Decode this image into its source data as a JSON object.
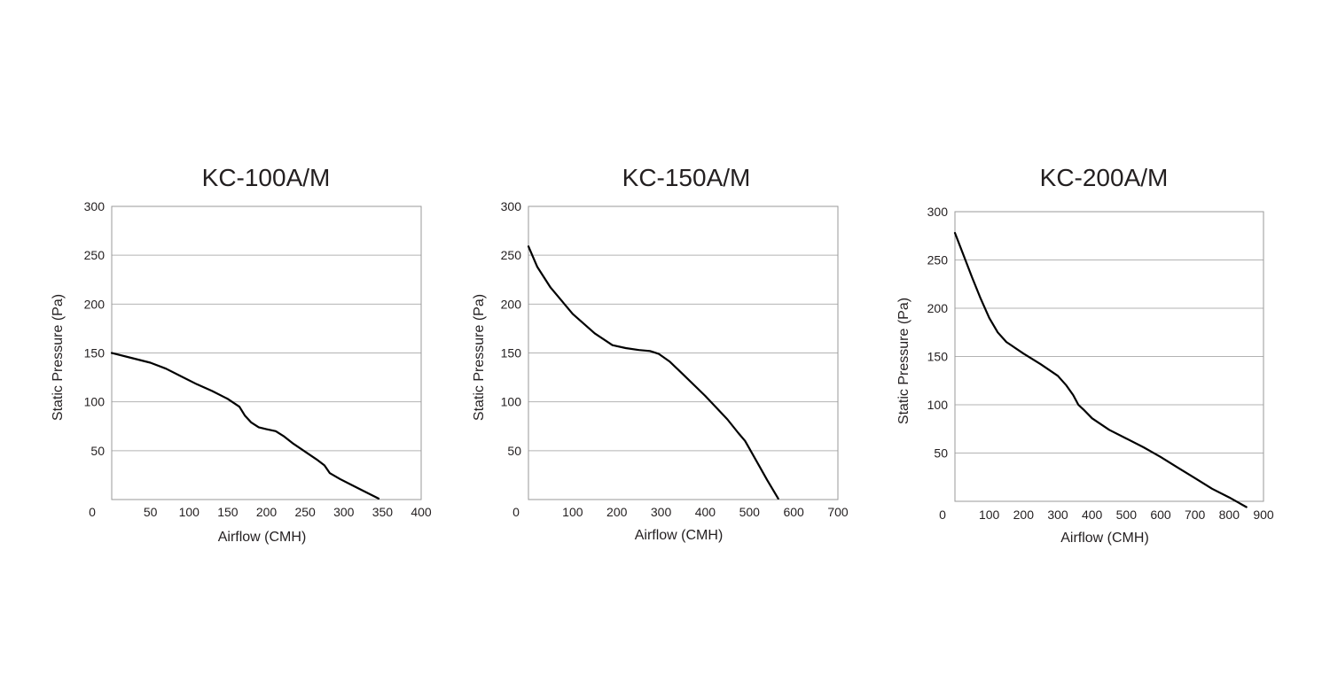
{
  "chart_data": [
    {
      "type": "line",
      "title": "KC-100A/M",
      "xlabel": "Airflow (CMH)",
      "ylabel": "Static Pressure (Pa)",
      "xlim": [
        0,
        400
      ],
      "ylim": [
        0,
        300
      ],
      "x_ticks": [
        "50",
        "100",
        "150",
        "200",
        "250",
        "300",
        "350",
        "400"
      ],
      "x_tick_values": [
        50,
        100,
        150,
        200,
        250,
        300,
        350,
        400
      ],
      "y_ticks": [
        "50",
        "100",
        "150",
        "200",
        "250",
        "300"
      ],
      "y_tick_values": [
        50,
        100,
        150,
        200,
        250,
        300
      ],
      "origin_label": "0",
      "grid": "horizontal",
      "series": [
        {
          "values": [
            [
              0,
              150
            ],
            [
              25,
              145
            ],
            [
              50,
              140
            ],
            [
              70,
              134
            ],
            [
              90,
              126
            ],
            [
              110,
              118
            ],
            [
              130,
              111
            ],
            [
              150,
              103
            ],
            [
              165,
              95
            ],
            [
              172,
              86
            ],
            [
              180,
              79
            ],
            [
              190,
              74
            ],
            [
              200,
              72
            ],
            [
              212,
              70
            ],
            [
              222,
              65
            ],
            [
              235,
              57
            ],
            [
              250,
              49
            ],
            [
              265,
              41
            ],
            [
              275,
              35
            ],
            [
              282,
              27
            ],
            [
              295,
              21
            ],
            [
              310,
              15
            ],
            [
              325,
              9
            ],
            [
              345,
              1
            ]
          ]
        }
      ]
    },
    {
      "type": "line",
      "title": "KC-150A/M",
      "xlabel": "Airflow (CMH)",
      "ylabel": "Static Pressure (Pa)",
      "xlim": [
        0,
        700
      ],
      "ylim": [
        0,
        300
      ],
      "x_ticks": [
        "100",
        "200",
        "300",
        "400",
        "500",
        "600",
        "700"
      ],
      "x_tick_values": [
        100,
        200,
        300,
        400,
        500,
        600,
        700
      ],
      "y_ticks": [
        "50",
        "100",
        "150",
        "200",
        "250",
        "300"
      ],
      "y_tick_values": [
        50,
        100,
        150,
        200,
        250,
        300
      ],
      "origin_label": "0",
      "grid": "horizontal",
      "series": [
        {
          "values": [
            [
              0,
              259
            ],
            [
              20,
              238
            ],
            [
              50,
              217
            ],
            [
              100,
              190
            ],
            [
              150,
              170
            ],
            [
              190,
              158
            ],
            [
              220,
              155
            ],
            [
              250,
              153
            ],
            [
              275,
              152
            ],
            [
              295,
              149
            ],
            [
              320,
              141
            ],
            [
              350,
              128
            ],
            [
              400,
              106
            ],
            [
              450,
              82
            ],
            [
              475,
              68
            ],
            [
              490,
              60
            ],
            [
              500,
              52
            ],
            [
              520,
              36
            ],
            [
              540,
              20
            ],
            [
              565,
              1
            ]
          ]
        }
      ]
    },
    {
      "type": "line",
      "title": "KC-200A/M",
      "xlabel": "Airflow (CMH)",
      "ylabel": "Static Pressure (Pa)",
      "xlim": [
        0,
        900
      ],
      "ylim": [
        0,
        300
      ],
      "x_ticks": [
        "100",
        "200",
        "300",
        "400",
        "500",
        "600",
        "700",
        "800",
        "900"
      ],
      "x_tick_values": [
        100,
        200,
        300,
        400,
        500,
        600,
        700,
        800,
        900
      ],
      "y_ticks": [
        "50",
        "100",
        "150",
        "200",
        "250",
        "300"
      ],
      "y_tick_values": [
        50,
        100,
        150,
        200,
        250,
        300
      ],
      "origin_label": "0",
      "grid": "horizontal",
      "series": [
        {
          "values": [
            [
              0,
              278
            ],
            [
              25,
              255
            ],
            [
              50,
              232
            ],
            [
              75,
              210
            ],
            [
              100,
              190
            ],
            [
              125,
              175
            ],
            [
              150,
              165
            ],
            [
              200,
              153
            ],
            [
              250,
              142
            ],
            [
              300,
              130
            ],
            [
              325,
              120
            ],
            [
              345,
              110
            ],
            [
              360,
              100
            ],
            [
              375,
              95
            ],
            [
              400,
              86
            ],
            [
              450,
              74
            ],
            [
              500,
              65
            ],
            [
              550,
              56
            ],
            [
              600,
              46
            ],
            [
              650,
              35
            ],
            [
              700,
              24
            ],
            [
              750,
              13
            ],
            [
              800,
              4
            ],
            [
              850,
              -6
            ]
          ]
        }
      ]
    }
  ]
}
